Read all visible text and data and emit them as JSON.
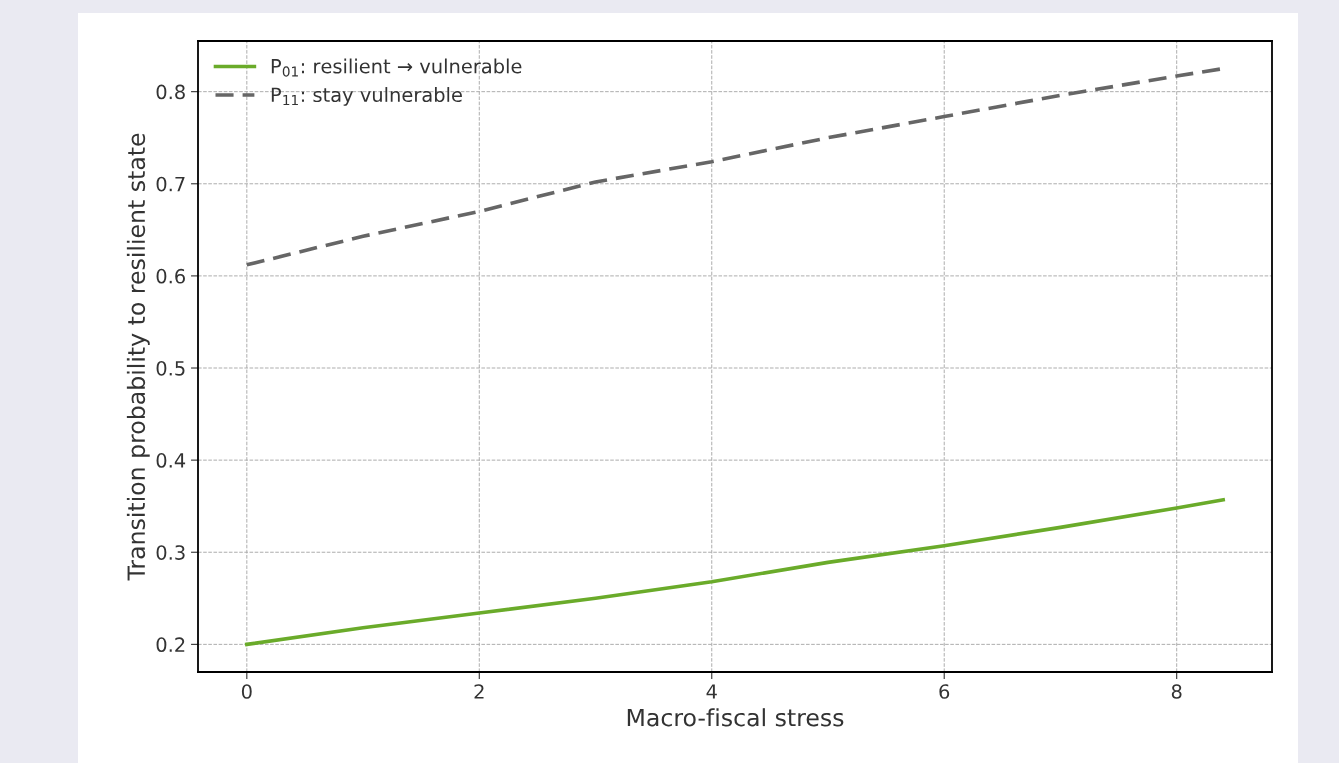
{
  "chart_data": {
    "type": "line",
    "xlabel": "Macro-fiscal stress",
    "ylabel": "Transition probability to resilient state",
    "x": [
      0,
      1,
      2,
      3,
      4,
      5,
      6,
      7,
      8,
      8.4
    ],
    "series": [
      {
        "name": "P$_{01}$: resilient → vulnerable",
        "color": "#6aab2a",
        "line_style": "solid",
        "values": [
          0.2,
          0.218,
          0.234,
          0.25,
          0.268,
          0.289,
          0.307,
          0.327,
          0.348,
          0.357
        ]
      },
      {
        "name": "P$_{11}$: stay vulnerable",
        "color": "#666666",
        "line_style": "dashed",
        "values": [
          0.612,
          0.643,
          0.67,
          0.702,
          0.724,
          0.75,
          0.773,
          0.796,
          0.817,
          0.825
        ]
      }
    ],
    "xlim": [
      -0.42,
      8.82
    ],
    "ylim": [
      0.17,
      0.855
    ],
    "xticks": [
      0,
      2,
      4,
      6,
      8
    ],
    "yticks": [
      0.2,
      0.3,
      0.4,
      0.5,
      0.6,
      0.7,
      0.8
    ],
    "grid": true,
    "legend": "top left",
    "marker": "none"
  }
}
